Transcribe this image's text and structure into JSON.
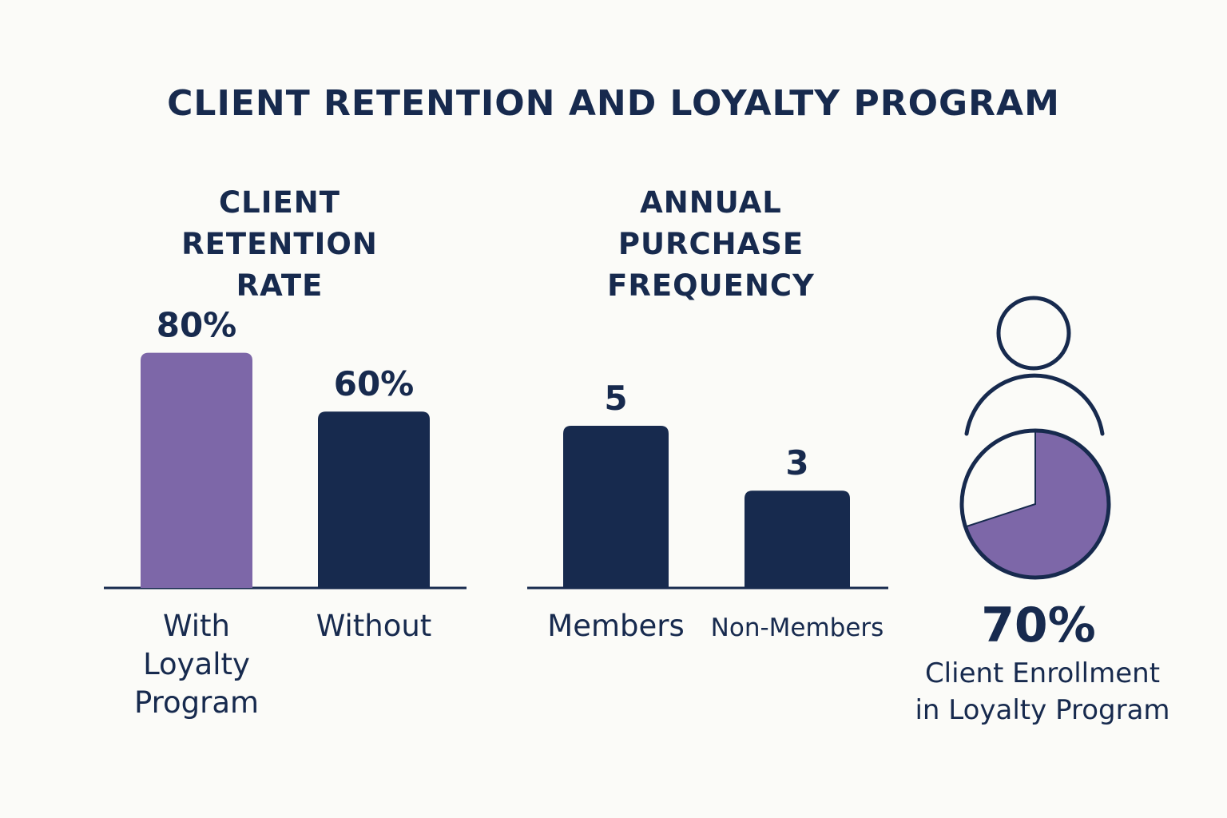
{
  "title": "CLIENT RETENTION AND LOYALTY PROGRAM",
  "colors": {
    "navy": "#172a4e",
    "purple": "#7d67a8",
    "background": "#fbfbf8",
    "text": "#172a4e"
  },
  "chart_data": [
    {
      "type": "bar",
      "title_lines": [
        "CLIENT RETENTION",
        "RATE"
      ],
      "categories": [
        [
          "With",
          "Loyalty",
          "Program"
        ],
        [
          "Without"
        ]
      ],
      "values": [
        80,
        60
      ],
      "value_labels": [
        "80%",
        "60%"
      ],
      "bar_colors": [
        "#7d67a8",
        "#172a4e"
      ],
      "ylim": [
        0,
        100
      ]
    },
    {
      "type": "bar",
      "title_lines": [
        "ANNUAL PURCHASE",
        "FREQUENCY"
      ],
      "categories": [
        [
          "Members"
        ],
        [
          "Non-Members"
        ]
      ],
      "values": [
        5,
        3
      ],
      "value_labels": [
        "5",
        "3"
      ],
      "bar_colors": [
        "#172a4e",
        "#172a4e"
      ],
      "ylim": [
        0,
        10
      ]
    },
    {
      "type": "pie",
      "value_label": "70%",
      "label_lines": [
        "Client Enrollment",
        "in Loyalty Program"
      ],
      "values": [
        70,
        30
      ],
      "slice_colors": [
        "#7d67a8",
        "#fbfbf8"
      ],
      "icon": "person-icon"
    }
  ]
}
